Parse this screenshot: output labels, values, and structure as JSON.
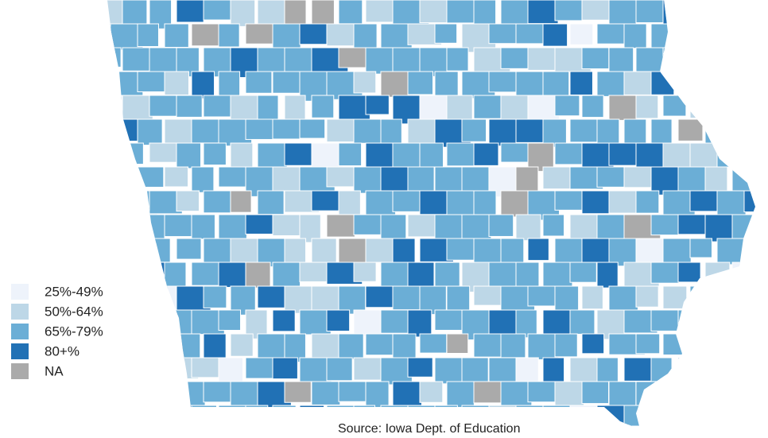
{
  "legend": {
    "items": [
      {
        "label": "25%-49%",
        "color": "#eef3fb"
      },
      {
        "label": "50%-64%",
        "color": "#bdd7e7"
      },
      {
        "label": "65%-79%",
        "color": "#6baed6"
      },
      {
        "label": "80+%",
        "color": "#2171b5"
      },
      {
        "label": "NA",
        "color": "#aaaaaa"
      }
    ]
  },
  "source": "Source: Iowa Dept. of Education"
}
